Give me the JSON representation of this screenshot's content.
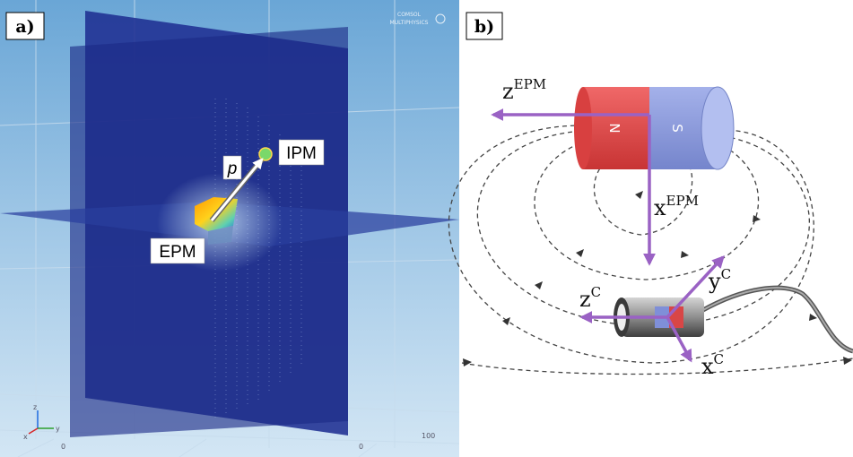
{
  "panel_a": {
    "label": "a)",
    "callouts": {
      "epm": "EPM",
      "ipm": "IPM",
      "vector": "p"
    },
    "logo_text": [
      "COMSOL",
      "MULTIPHYSICS"
    ],
    "bottom_ticks": [
      "0",
      "0",
      "100"
    ],
    "triad": {
      "z": "z",
      "y": "y",
      "x": "x"
    }
  },
  "panel_b": {
    "label": "b)",
    "magnet": {
      "north": "N",
      "south": "S"
    },
    "axes": {
      "z_epm": {
        "base": "z",
        "sup": "EPM"
      },
      "x_epm": {
        "base": "x",
        "sup": "EPM"
      },
      "z_c": {
        "base": "z",
        "sup": "C"
      },
      "y_c": {
        "base": "y",
        "sup": "C"
      },
      "x_c": {
        "base": "x",
        "sup": "C"
      }
    },
    "colors": {
      "arrow": "#9a62c4",
      "north": "#e04848",
      "south": "#8f9ee2",
      "field_line": "#444444"
    }
  }
}
